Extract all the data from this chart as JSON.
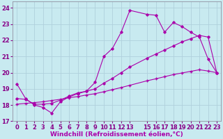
{
  "background_color": "#c8eaf0",
  "grid_color": "#b0d0dc",
  "line_color": "#aa00aa",
  "marker_color": "#aa00aa",
  "xlabel": "Windchill (Refroidissement éolien,°C)",
  "xlabel_fontsize": 6.5,
  "tick_fontsize": 6.0,
  "xlim": [
    -0.5,
    23.5
  ],
  "ylim": [
    17,
    24.4
  ],
  "yticks": [
    17,
    18,
    19,
    20,
    21,
    22,
    23,
    24
  ],
  "xticks": [
    0,
    1,
    2,
    3,
    4,
    5,
    6,
    7,
    8,
    9,
    10,
    11,
    12,
    13,
    15,
    16,
    17,
    18,
    19,
    20,
    21,
    22,
    23
  ],
  "series1_x": [
    0,
    1,
    2,
    3,
    4,
    5,
    6,
    7,
    8,
    9,
    10,
    11,
    12,
    13,
    15,
    16,
    17,
    18,
    19,
    20,
    21,
    22,
    23
  ],
  "series1_y": [
    19.3,
    18.4,
    18.0,
    17.85,
    17.5,
    18.2,
    18.5,
    18.7,
    18.85,
    19.4,
    21.0,
    21.5,
    22.5,
    23.85,
    23.6,
    23.55,
    22.5,
    23.1,
    22.85,
    22.5,
    22.2,
    20.85,
    20.0
  ],
  "series2_x": [
    0,
    1,
    2,
    3,
    4,
    5,
    6,
    7,
    8,
    9,
    10,
    11,
    12,
    13,
    15,
    16,
    17,
    18,
    19,
    20,
    21,
    22,
    23
  ],
  "series2_y": [
    18.4,
    18.35,
    18.05,
    18.05,
    18.1,
    18.3,
    18.55,
    18.75,
    18.85,
    19.0,
    19.35,
    19.65,
    20.0,
    20.35,
    20.9,
    21.15,
    21.4,
    21.65,
    21.9,
    22.1,
    22.3,
    22.2,
    20.0
  ],
  "series3_x": [
    0,
    1,
    2,
    3,
    4,
    5,
    6,
    7,
    8,
    9,
    10,
    11,
    12,
    13,
    15,
    16,
    17,
    18,
    19,
    20,
    21,
    22,
    23
  ],
  "series3_y": [
    18.05,
    18.1,
    18.15,
    18.2,
    18.28,
    18.35,
    18.45,
    18.52,
    18.62,
    18.7,
    18.82,
    18.95,
    19.08,
    19.22,
    19.5,
    19.62,
    19.75,
    19.88,
    19.98,
    20.08,
    20.18,
    20.1,
    20.0
  ]
}
